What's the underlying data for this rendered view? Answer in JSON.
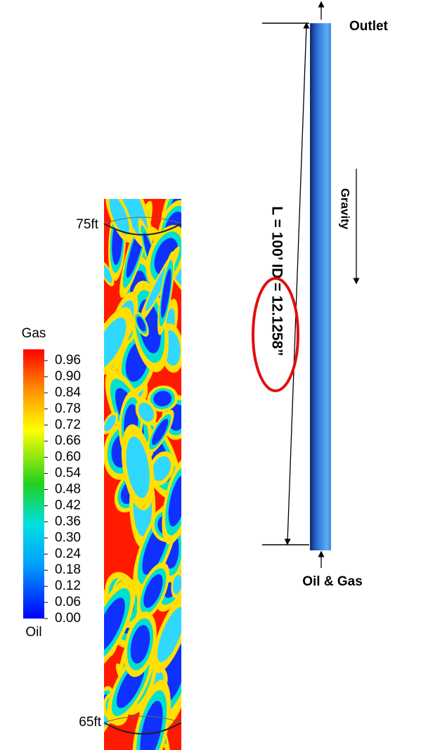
{
  "pipe_section": {
    "top_label": "75ft",
    "bottom_label": "65ft"
  },
  "colorbar": {
    "title": "Gas",
    "bottom_label": "Oil",
    "ticks": [
      "0.96",
      "0.90",
      "0.84",
      "0.78",
      "0.72",
      "0.66",
      "0.60",
      "0.54",
      "0.48",
      "0.42",
      "0.36",
      "0.30",
      "0.24",
      "0.18",
      "0.12",
      "0.06",
      "0.00"
    ]
  },
  "schematic": {
    "outlet": "Outlet",
    "gravity": "Gravity",
    "inlet": "Oil & Gas",
    "dimension": "L = 100’ ID = 12.1258”"
  }
}
